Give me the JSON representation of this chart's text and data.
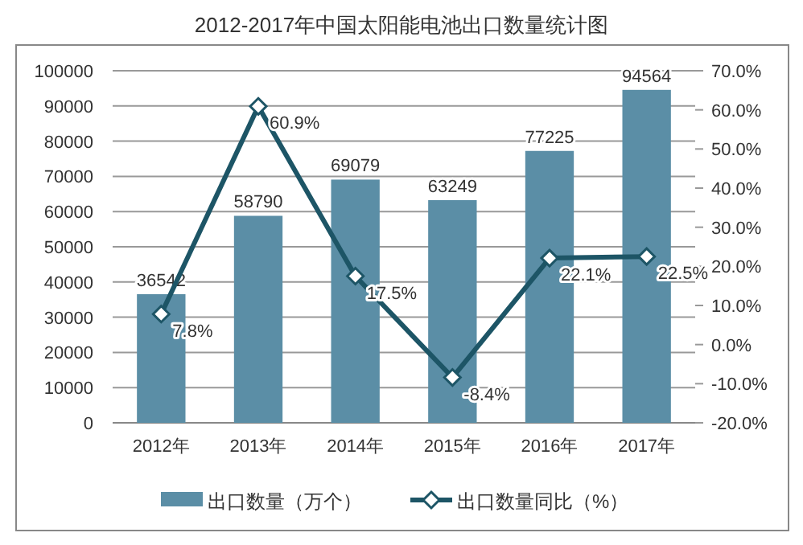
{
  "chart_data": {
    "type": "bar",
    "title": "2012-2017年中国太阳能电池出口数量统计图",
    "categories": [
      "2012年",
      "2013年",
      "2014年",
      "2015年",
      "2016年",
      "2017年"
    ],
    "series": [
      {
        "name": "出口数量（万个）",
        "color": "#5b8ea6",
        "values": [
          36542,
          58790,
          69079,
          63249,
          77225,
          94564
        ]
      },
      {
        "name": "出口数量同比（%）",
        "type": "line",
        "axis": "y2",
        "color": "#1d5566",
        "marker": "diamond",
        "values": [
          7.8,
          60.9,
          17.5,
          -8.4,
          22.1,
          22.5
        ],
        "value_labels": [
          "7.8%",
          "60.9%",
          "17.5%",
          "-8.4%",
          "22.1%",
          "22.5%"
        ]
      }
    ],
    "ylim": [
      0,
      100000
    ],
    "yticks": [
      0,
      10000,
      20000,
      30000,
      40000,
      50000,
      60000,
      70000,
      80000,
      90000,
      100000
    ],
    "y2lim": [
      -20,
      70
    ],
    "y2ticks": [
      {
        "value": -20,
        "label": "-20.0%"
      },
      {
        "value": -10,
        "label": "-10.0%"
      },
      {
        "value": 0,
        "label": "0.0%"
      },
      {
        "value": 10,
        "label": "10.0%"
      },
      {
        "value": 20,
        "label": "20.0%"
      },
      {
        "value": 30,
        "label": "30.0%"
      },
      {
        "value": 40,
        "label": "40.0%"
      },
      {
        "value": 50,
        "label": "50.0%"
      },
      {
        "value": 60,
        "label": "60.0%"
      },
      {
        "value": 70,
        "label": "70.0%"
      }
    ],
    "data_labels": true,
    "grid": "y",
    "legend": "bottom"
  }
}
